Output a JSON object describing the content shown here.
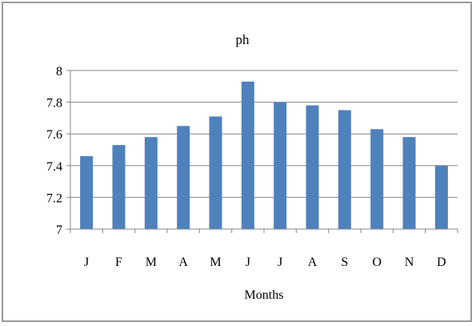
{
  "chart_data": {
    "type": "bar",
    "title": "ph",
    "xlabel": "Months",
    "ylabel": "",
    "categories": [
      "J",
      "F",
      "M",
      "A",
      "M",
      "J",
      "J",
      "A",
      "S",
      "O",
      "N",
      "D"
    ],
    "values": [
      7.46,
      7.53,
      7.58,
      7.65,
      7.71,
      7.93,
      7.8,
      7.78,
      7.75,
      7.63,
      7.58,
      7.4
    ],
    "ylim": [
      7,
      8
    ],
    "yticks": [
      "7",
      "7.2",
      "7.4",
      "7.6",
      "7.8",
      "8"
    ],
    "grid": true,
    "legend": "none",
    "colors": {
      "bar": "#4f81bd",
      "grid": "#868686",
      "axis": "#868686"
    }
  }
}
